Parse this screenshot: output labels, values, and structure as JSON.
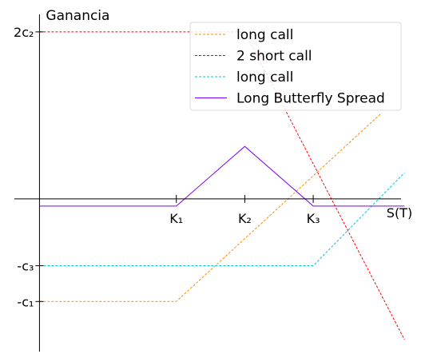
{
  "chart_data": {
    "type": "line",
    "ylabel": "Ganancia",
    "xlabel": "S(T)",
    "xlim": [
      -1.1,
      16.2
    ],
    "ylim": [
      -6.4,
      7.8
    ],
    "x_ticks": [
      {
        "value": 6,
        "label": "K₁"
      },
      {
        "value": 9,
        "label": "K₂"
      },
      {
        "value": 12,
        "label": "K₃"
      }
    ],
    "y_ticks": [
      {
        "value": 7,
        "label": "2c₂"
      },
      {
        "value": -2.8,
        "label": "-c₃"
      },
      {
        "value": -4.3,
        "label": "-c₁"
      }
    ],
    "series": [
      {
        "name": "long call",
        "color": "#ff8c00",
        "dash": "dashed",
        "x": [
          0,
          6,
          15
        ],
        "y": [
          -4.3,
          -4.3,
          3.6
        ]
      },
      {
        "name": "2 short call",
        "color": "#ff0000",
        "dash": "dashed",
        "x": [
          0,
          9,
          16
        ],
        "y": [
          7,
          7,
          -5.9
        ]
      },
      {
        "name": "long call",
        "color": "#00c8dc",
        "dash": "dashed",
        "x": [
          0,
          12,
          16
        ],
        "y": [
          -2.8,
          -2.8,
          1.1
        ]
      },
      {
        "name": "Long Butterfly Spread",
        "color": "#7f00ff",
        "dash": "solid",
        "x": [
          0,
          6,
          9,
          12,
          16
        ],
        "y": [
          -0.3,
          -0.3,
          2.2,
          -0.3,
          -0.3
        ]
      }
    ],
    "legend": "top-right"
  }
}
